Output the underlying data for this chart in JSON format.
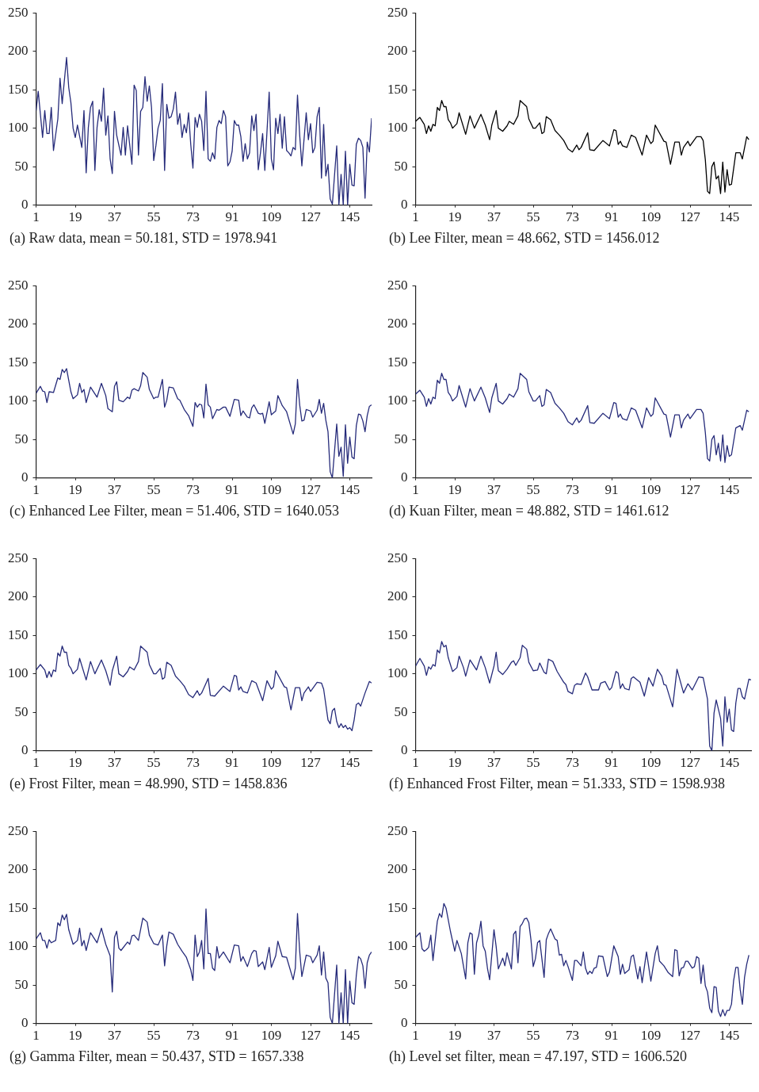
{
  "chart_data": [
    {
      "type": "line",
      "xlabel": "(a)  Raw data, mean = 50.181,  STD  =  1978.941",
      "color": "#262b7a",
      "xlim": [
        1,
        155
      ],
      "xticks": [
        1,
        19,
        37,
        55,
        73,
        91,
        109,
        127,
        145
      ],
      "ylim": [
        0,
        250
      ],
      "yticks": [
        0,
        50,
        100,
        150,
        200,
        250
      ],
      "x": [
        1,
        2,
        4,
        5,
        6,
        7,
        8,
        9,
        11,
        12,
        13,
        15,
        16,
        17,
        18,
        19,
        20,
        22,
        23,
        24,
        25,
        26,
        27,
        28,
        29,
        30,
        31,
        32,
        33,
        34,
        35,
        36,
        37,
        38,
        40,
        41,
        42,
        43,
        45,
        46,
        47,
        48,
        49,
        50,
        51,
        52,
        53,
        54,
        55,
        56,
        57,
        58,
        59,
        60,
        61,
        62,
        63,
        64,
        65,
        66,
        67,
        68,
        69,
        70,
        71,
        72,
        73,
        74,
        75,
        76,
        77,
        78,
        79,
        80,
        81,
        82,
        83,
        84,
        85,
        86,
        87,
        88,
        89,
        90,
        91,
        92,
        93,
        94,
        95,
        96,
        97,
        98,
        99,
        100,
        101,
        102,
        103,
        104,
        105,
        106,
        108,
        109,
        110,
        111,
        112,
        113,
        114,
        115,
        116,
        117,
        118,
        119,
        120,
        121,
        122,
        123,
        125,
        126,
        127,
        128,
        129,
        130,
        131,
        132,
        133,
        134,
        135,
        136,
        137,
        139,
        140,
        141,
        142,
        143,
        144,
        145,
        146,
        147,
        148,
        149,
        150,
        151,
        152,
        153,
        154,
        155
      ],
      "values": [
        123,
        148,
        88,
        123,
        93,
        93,
        127,
        71,
        112,
        165,
        132,
        192,
        153,
        133,
        100,
        88,
        104,
        75,
        123,
        42,
        101,
        127,
        135,
        45,
        101,
        124,
        109,
        152,
        91,
        116,
        60,
        41,
        122,
        91,
        65,
        101,
        65,
        103,
        53,
        156,
        149,
        65,
        122,
        127,
        167,
        135,
        155,
        127,
        58,
        77,
        100,
        110,
        158,
        45,
        131,
        113,
        115,
        125,
        147,
        105,
        119,
        88,
        105,
        94,
        120,
        79,
        48,
        114,
        101,
        118,
        109,
        71,
        148,
        60,
        57,
        68,
        60,
        101,
        110,
        106,
        123,
        115,
        51,
        56,
        70,
        110,
        104,
        104,
        89,
        57,
        80,
        60,
        68,
        116,
        97,
        118,
        46,
        68,
        93,
        45,
        147,
        60,
        46,
        113,
        93,
        118,
        74,
        115,
        71,
        68,
        64,
        75,
        72,
        143,
        91,
        51,
        120,
        85,
        106,
        68,
        75,
        115,
        127,
        35,
        105,
        38,
        53,
        8,
        1,
        77,
        0,
        40,
        0,
        70,
        0,
        53,
        26,
        25,
        79,
        87,
        84,
        75,
        9,
        82,
        69,
        113
      ]
    },
    {
      "type": "line",
      "xlabel": "(b)  Lee Filter, mean = 48.662,  STD  =  1456.012",
      "color": "#000000",
      "xlim": [
        1,
        155
      ],
      "xticks": [
        1,
        19,
        37,
        55,
        73,
        91,
        109,
        127,
        145
      ],
      "ylim": [
        0,
        250
      ],
      "yticks": [
        0,
        50,
        100,
        150,
        200,
        250
      ],
      "x": [
        1,
        3,
        5,
        6,
        7,
        8,
        9,
        10,
        11,
        12,
        13,
        14,
        15,
        16,
        17,
        18,
        20,
        21,
        24,
        26,
        28,
        31,
        33,
        35,
        36,
        38,
        39,
        41,
        43,
        44,
        46,
        48,
        49,
        52,
        53,
        55,
        56,
        58,
        59,
        60,
        61,
        63,
        65,
        67,
        69,
        71,
        73,
        75,
        76,
        77,
        80,
        81,
        83,
        87,
        90,
        92,
        93,
        94,
        95,
        96,
        98,
        100,
        102,
        105,
        107,
        109,
        110,
        111,
        115,
        116,
        118,
        120,
        122,
        123,
        124,
        126,
        127,
        130,
        132,
        133,
        134,
        135,
        136,
        137,
        138,
        139,
        140,
        141,
        142,
        143,
        144,
        145,
        146,
        148,
        150,
        151,
        153,
        154
      ],
      "values": [
        109,
        114,
        105,
        93,
        103,
        96,
        105,
        103,
        127,
        123,
        136,
        128,
        128,
        111,
        107,
        100,
        106,
        120,
        92,
        116,
        100,
        118,
        104,
        85,
        104,
        123,
        100,
        96,
        103,
        109,
        105,
        116,
        136,
        128,
        112,
        100,
        100,
        107,
        93,
        95,
        115,
        111,
        97,
        91,
        84,
        73,
        69,
        78,
        72,
        75,
        94,
        72,
        71,
        84,
        77,
        98,
        97,
        79,
        83,
        77,
        75,
        91,
        88,
        65,
        91,
        80,
        83,
        104,
        83,
        82,
        53,
        82,
        82,
        65,
        75,
        83,
        77,
        89,
        89,
        84,
        59,
        18,
        15,
        50,
        56,
        34,
        38,
        15,
        56,
        17,
        46,
        26,
        27,
        68,
        68,
        60,
        89,
        85
      ]
    },
    {
      "type": "line",
      "xlabel": "(c)  Enhanced  Lee  Filter,  mean  =  51.406,  STD  =  1640.053",
      "color": "#262b7a",
      "xlim": [
        1,
        155
      ],
      "xticks": [
        1,
        19,
        37,
        55,
        73,
        91,
        109,
        127,
        145
      ],
      "ylim": [
        0,
        250
      ],
      "yticks": [
        0,
        50,
        100,
        150,
        200,
        250
      ],
      "x": [
        1,
        3,
        4,
        5,
        6,
        7,
        9,
        11,
        12,
        13,
        14,
        15,
        17,
        18,
        20,
        21,
        22,
        23,
        24,
        26,
        29,
        31,
        33,
        34,
        36,
        37,
        38,
        39,
        41,
        43,
        44,
        45,
        46,
        48,
        49,
        50,
        52,
        53,
        55,
        56,
        57,
        59,
        60,
        61,
        62,
        64,
        66,
        67,
        69,
        71,
        73,
        74,
        75,
        76,
        77,
        78,
        79,
        80,
        81,
        82,
        84,
        85,
        87,
        88,
        90,
        92,
        94,
        95,
        96,
        98,
        99,
        100,
        101,
        103,
        104,
        105,
        106,
        108,
        109,
        111,
        112,
        114,
        116,
        119,
        120,
        121,
        122,
        123,
        124,
        125,
        127,
        128,
        130,
        131,
        132,
        133,
        134,
        135,
        136,
        137,
        139,
        140,
        141,
        142,
        143,
        144,
        145,
        146,
        147,
        148,
        149,
        150,
        151,
        152,
        153,
        154,
        155
      ],
      "values": [
        110,
        119,
        113,
        112,
        98,
        112,
        111,
        130,
        128,
        141,
        137,
        142,
        112,
        103,
        108,
        123,
        111,
        115,
        98,
        118,
        105,
        123,
        107,
        90,
        86,
        119,
        125,
        101,
        99,
        105,
        103,
        114,
        116,
        113,
        120,
        137,
        131,
        115,
        103,
        105,
        105,
        128,
        92,
        101,
        118,
        117,
        103,
        101,
        89,
        81,
        67,
        98,
        92,
        96,
        95,
        78,
        122,
        95,
        92,
        77,
        89,
        88,
        92,
        92,
        80,
        102,
        101,
        81,
        87,
        79,
        78,
        91,
        95,
        84,
        83,
        84,
        71,
        99,
        82,
        87,
        107,
        94,
        86,
        57,
        70,
        128,
        95,
        74,
        75,
        89,
        87,
        79,
        88,
        102,
        84,
        97,
        75,
        60,
        8,
        0,
        70,
        28,
        40,
        2,
        69,
        19,
        53,
        27,
        25,
        68,
        83,
        82,
        74,
        60,
        81,
        93,
        95
      ]
    },
    {
      "type": "line",
      "xlabel": "(d)  Kuan Filter, mean = 48.882,  STD  =  1461.612",
      "color": "#262b7a",
      "xlim": [
        1,
        155
      ],
      "xticks": [
        1,
        19,
        37,
        55,
        73,
        91,
        109,
        127,
        145
      ],
      "ylim": [
        0,
        250
      ],
      "yticks": [
        0,
        50,
        100,
        150,
        200,
        250
      ],
      "x": [
        1,
        3,
        5,
        6,
        7,
        8,
        9,
        10,
        11,
        12,
        13,
        14,
        15,
        16,
        17,
        18,
        20,
        21,
        24,
        26,
        28,
        31,
        33,
        35,
        36,
        38,
        39,
        41,
        43,
        44,
        46,
        48,
        49,
        52,
        53,
        55,
        56,
        58,
        59,
        60,
        61,
        63,
        65,
        67,
        69,
        71,
        73,
        75,
        76,
        77,
        80,
        81,
        83,
        87,
        90,
        92,
        93,
        94,
        95,
        96,
        98,
        100,
        102,
        105,
        107,
        109,
        110,
        111,
        115,
        116,
        118,
        120,
        122,
        123,
        124,
        126,
        127,
        130,
        132,
        133,
        134,
        135,
        136,
        137,
        138,
        139,
        140,
        141,
        142,
        143,
        144,
        145,
        146,
        148,
        150,
        151,
        153,
        154
      ],
      "values": [
        109,
        114,
        105,
        93,
        103,
        96,
        105,
        103,
        127,
        123,
        136,
        128,
        128,
        111,
        107,
        100,
        106,
        120,
        92,
        116,
        100,
        118,
        104,
        85,
        104,
        123,
        100,
        96,
        103,
        109,
        105,
        116,
        136,
        128,
        112,
        100,
        100,
        107,
        93,
        95,
        115,
        111,
        97,
        91,
        84,
        73,
        69,
        78,
        72,
        75,
        94,
        72,
        71,
        84,
        77,
        98,
        97,
        79,
        83,
        77,
        75,
        91,
        88,
        65,
        91,
        80,
        83,
        104,
        83,
        82,
        53,
        82,
        82,
        65,
        75,
        83,
        77,
        89,
        89,
        84,
        59,
        25,
        22,
        50,
        55,
        30,
        45,
        22,
        56,
        20,
        42,
        28,
        30,
        65,
        68,
        62,
        88,
        86
      ]
    },
    {
      "type": "line",
      "xlabel": "(e)  Frost Filter, mean = 48.990,  STD  =  1458.836",
      "color": "#262b7a",
      "xlim": [
        1,
        155
      ],
      "xticks": [
        1,
        19,
        37,
        55,
        73,
        91,
        109,
        127,
        145
      ],
      "ylim": [
        0,
        250
      ],
      "yticks": [
        0,
        50,
        100,
        150,
        200,
        250
      ],
      "x": [
        1,
        3,
        5,
        6,
        7,
        8,
        9,
        10,
        11,
        12,
        13,
        14,
        15,
        16,
        17,
        18,
        20,
        21,
        24,
        26,
        28,
        31,
        33,
        35,
        36,
        38,
        39,
        41,
        43,
        44,
        46,
        48,
        49,
        52,
        53,
        55,
        56,
        58,
        59,
        60,
        61,
        63,
        65,
        67,
        69,
        71,
        73,
        75,
        76,
        77,
        80,
        81,
        83,
        87,
        90,
        92,
        93,
        94,
        95,
        96,
        98,
        100,
        102,
        105,
        107,
        109,
        110,
        111,
        115,
        116,
        118,
        120,
        122,
        123,
        124,
        126,
        127,
        130,
        132,
        133,
        134,
        135,
        136,
        137,
        138,
        139,
        140,
        141,
        142,
        143,
        144,
        145,
        146,
        147,
        148,
        149,
        150,
        152,
        154,
        155
      ],
      "values": [
        105,
        112,
        105,
        95,
        103,
        96,
        105,
        103,
        127,
        123,
        136,
        128,
        128,
        111,
        107,
        100,
        106,
        120,
        92,
        116,
        100,
        118,
        104,
        85,
        104,
        123,
        100,
        96,
        103,
        109,
        105,
        116,
        136,
        128,
        112,
        100,
        100,
        107,
        93,
        95,
        115,
        111,
        97,
        91,
        84,
        73,
        69,
        78,
        72,
        75,
        94,
        72,
        71,
        84,
        77,
        98,
        97,
        79,
        83,
        77,
        75,
        91,
        88,
        65,
        91,
        80,
        83,
        104,
        83,
        82,
        53,
        82,
        82,
        65,
        75,
        83,
        77,
        89,
        88,
        80,
        60,
        40,
        35,
        52,
        55,
        38,
        30,
        35,
        30,
        33,
        28,
        30,
        26,
        40,
        60,
        62,
        58,
        75,
        90,
        88
      ]
    },
    {
      "type": "line",
      "xlabel": "(f)  Enhanced  Frost  Filter,  mean  =  51.333,  STD  =  1598.938",
      "color": "#262b7a",
      "xlim": [
        1,
        155
      ],
      "xticks": [
        1,
        19,
        37,
        55,
        73,
        91,
        109,
        127,
        145
      ],
      "ylim": [
        0,
        250
      ],
      "yticks": [
        0,
        50,
        100,
        150,
        200,
        250
      ],
      "x": [
        1,
        3,
        5,
        6,
        7,
        8,
        9,
        10,
        11,
        12,
        13,
        14,
        15,
        16,
        18,
        20,
        21,
        23,
        24,
        26,
        29,
        31,
        33,
        35,
        37,
        38,
        39,
        41,
        43,
        45,
        46,
        47,
        49,
        50,
        52,
        53,
        55,
        57,
        58,
        60,
        61,
        62,
        64,
        66,
        69,
        70,
        71,
        73,
        74,
        75,
        77,
        79,
        80,
        82,
        85,
        86,
        88,
        90,
        91,
        93,
        94,
        95,
        96,
        97,
        99,
        100,
        101,
        104,
        106,
        108,
        110,
        112,
        114,
        115,
        116,
        119,
        121,
        124,
        126,
        128,
        131,
        133,
        135,
        136,
        137,
        138,
        139,
        141,
        142,
        143,
        144,
        145,
        146,
        147,
        148,
        149,
        150,
        151,
        152,
        154,
        155
      ],
      "values": [
        110,
        120,
        110,
        98,
        109,
        106,
        112,
        110,
        131,
        127,
        142,
        135,
        137,
        121,
        103,
        108,
        123,
        108,
        97,
        118,
        105,
        123,
        108,
        88,
        110,
        128,
        104,
        99,
        106,
        115,
        117,
        111,
        121,
        137,
        132,
        115,
        104,
        105,
        114,
        102,
        100,
        119,
        116,
        103,
        89,
        86,
        77,
        74,
        85,
        87,
        86,
        101,
        96,
        79,
        79,
        88,
        90,
        79,
        82,
        103,
        101,
        81,
        87,
        81,
        79,
        94,
        96,
        89,
        71,
        95,
        84,
        106,
        97,
        86,
        85,
        57,
        106,
        75,
        87,
        79,
        96,
        95,
        67,
        6,
        0,
        49,
        66,
        42,
        6,
        70,
        37,
        54,
        27,
        25,
        62,
        81,
        81,
        70,
        67,
        93,
        92
      ]
    },
    {
      "type": "line",
      "xlabel": "(g)  Gamma  Filter,  mean  =  50.437,  STD  =  1657.338",
      "color": "#262b7a",
      "xlim": [
        1,
        155
      ],
      "xticks": [
        1,
        19,
        37,
        55,
        73,
        91,
        109,
        127,
        145
      ],
      "ylim": [
        0,
        250
      ],
      "yticks": [
        0,
        50,
        100,
        150,
        200,
        250
      ],
      "x": [
        1,
        3,
        4,
        5,
        6,
        7,
        8,
        10,
        11,
        12,
        13,
        14,
        15,
        16,
        18,
        20,
        21,
        22,
        23,
        24,
        26,
        29,
        31,
        33,
        35,
        36,
        37,
        38,
        39,
        40,
        43,
        44,
        45,
        46,
        48,
        50,
        52,
        53,
        55,
        57,
        59,
        60,
        61,
        62,
        64,
        66,
        68,
        70,
        72,
        73,
        74,
        75,
        76,
        77,
        78,
        79,
        80,
        81,
        82,
        83,
        84,
        85,
        87,
        90,
        92,
        94,
        95,
        96,
        98,
        100,
        101,
        102,
        103,
        105,
        106,
        108,
        109,
        111,
        112,
        114,
        116,
        119,
        120,
        121,
        122,
        123,
        125,
        127,
        128,
        130,
        131,
        132,
        133,
        134,
        135,
        136,
        137,
        139,
        140,
        141,
        142,
        143,
        144,
        145,
        146,
        147,
        148,
        149,
        150,
        151,
        152,
        153,
        154,
        155
      ],
      "values": [
        110,
        118,
        108,
        108,
        98,
        109,
        105,
        108,
        131,
        127,
        141,
        135,
        142,
        122,
        103,
        108,
        124,
        101,
        108,
        95,
        118,
        105,
        124,
        103,
        88,
        41,
        112,
        120,
        98,
        95,
        106,
        103,
        114,
        115,
        108,
        137,
        132,
        115,
        104,
        102,
        115,
        75,
        101,
        119,
        116,
        103,
        94,
        86,
        70,
        56,
        115,
        87,
        93,
        108,
        71,
        149,
        91,
        91,
        72,
        69,
        100,
        85,
        93,
        79,
        102,
        101,
        81,
        87,
        74,
        91,
        95,
        94,
        74,
        80,
        70,
        99,
        73,
        88,
        107,
        87,
        86,
        57,
        72,
        143,
        94,
        61,
        89,
        87,
        79,
        89,
        101,
        63,
        93,
        59,
        53,
        8,
        0,
        76,
        0,
        40,
        0,
        70,
        0,
        55,
        27,
        25,
        63,
        87,
        84,
        75,
        46,
        79,
        89,
        93
      ]
    },
    {
      "type": "line",
      "xlabel": "(h)  Level  set  filter,  mean  =  47.197,  STD  =  1606.520",
      "color": "#262b7a",
      "xlim": [
        1,
        155
      ],
      "xticks": [
        1,
        19,
        37,
        55,
        73,
        91,
        109,
        127,
        145
      ],
      "ylim": [
        0,
        250
      ],
      "yticks": [
        0,
        50,
        100,
        150,
        200,
        250
      ],
      "x": [
        1,
        3,
        4,
        5,
        6,
        7,
        8,
        9,
        11,
        12,
        13,
        14,
        15,
        17,
        19,
        20,
        22,
        24,
        25,
        26,
        27,
        28,
        29,
        30,
        31,
        32,
        33,
        34,
        35,
        37,
        38,
        39,
        41,
        42,
        43,
        45,
        46,
        47,
        48,
        49,
        50,
        51,
        52,
        53,
        54,
        55,
        56,
        57,
        58,
        60,
        61,
        62,
        63,
        65,
        66,
        67,
        68,
        69,
        70,
        71,
        73,
        74,
        75,
        77,
        78,
        79,
        80,
        81,
        82,
        83,
        84,
        85,
        87,
        89,
        90,
        92,
        94,
        95,
        96,
        97,
        99,
        100,
        101,
        103,
        104,
        105,
        107,
        109,
        111,
        112,
        113,
        115,
        117,
        119,
        120,
        121,
        122,
        123,
        124,
        125,
        126,
        128,
        129,
        130,
        131,
        132,
        133,
        134,
        135,
        136,
        137,
        138,
        139,
        140,
        141,
        142,
        143,
        144,
        145,
        146,
        147,
        148,
        149,
        150,
        151,
        152,
        153,
        154
      ],
      "values": [
        112,
        118,
        97,
        94,
        96,
        99,
        115,
        82,
        133,
        143,
        138,
        156,
        150,
        120,
        94,
        108,
        91,
        58,
        105,
        118,
        116,
        64,
        105,
        115,
        133,
        101,
        94,
        72,
        57,
        122,
        100,
        71,
        85,
        75,
        92,
        71,
        116,
        120,
        79,
        126,
        130,
        136,
        137,
        131,
        108,
        74,
        84,
        105,
        108,
        60,
        109,
        117,
        123,
        110,
        108,
        89,
        90,
        75,
        82,
        74,
        56,
        82,
        82,
        75,
        93,
        72,
        64,
        68,
        65,
        72,
        73,
        88,
        87,
        61,
        67,
        101,
        87,
        64,
        77,
        65,
        70,
        87,
        89,
        58,
        74,
        53,
        93,
        55,
        91,
        101,
        81,
        75,
        66,
        61,
        96,
        95,
        62,
        72,
        73,
        81,
        81,
        72,
        74,
        87,
        85,
        52,
        76,
        49,
        41,
        20,
        14,
        48,
        47,
        16,
        9,
        18,
        10,
        17,
        17,
        25,
        56,
        73,
        73,
        44,
        25,
        60,
        77,
        89
      ]
    }
  ]
}
